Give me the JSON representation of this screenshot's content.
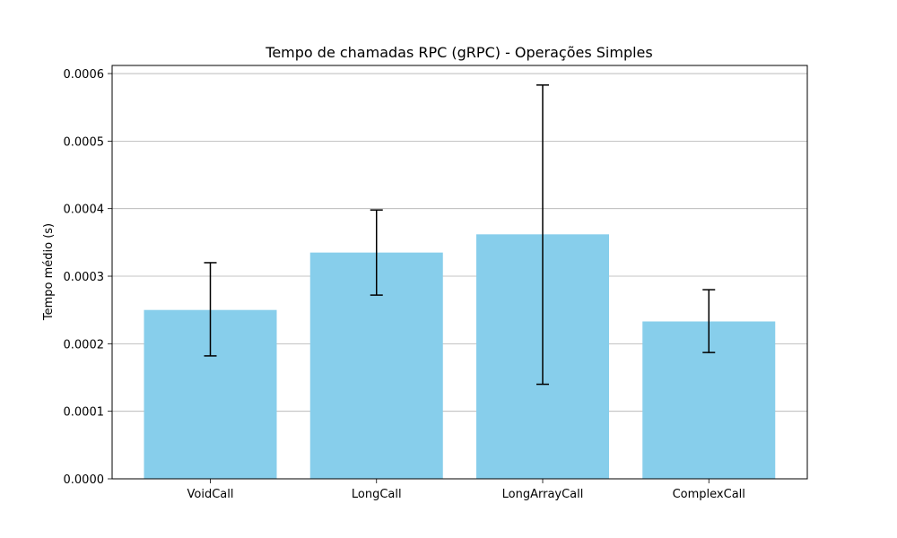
{
  "chart_data": {
    "type": "bar",
    "title": "Tempo de chamadas RPC (gRPC) - Operações Simples",
    "xlabel": "",
    "ylabel": "Tempo médio (s)",
    "categories": [
      "VoidCall",
      "LongCall",
      "LongArrayCall",
      "ComplexCall"
    ],
    "values": [
      0.00025,
      0.000335,
      0.000362,
      0.000233
    ],
    "error_low": [
      0.000182,
      0.000272,
      0.00014,
      0.000187
    ],
    "error_high": [
      0.00032,
      0.000398,
      0.000583,
      0.00028
    ],
    "ylim": [
      0,
      0.000612
    ],
    "yticks": [
      "0.0000",
      "0.0001",
      "0.0002",
      "0.0003",
      "0.0004",
      "0.0005",
      "0.0006"
    ],
    "ytick_values": [
      0,
      0.0001,
      0.0002,
      0.0003,
      0.0004,
      0.0005,
      0.0006
    ],
    "grid": "y-axis",
    "colors": {
      "bar": "#87CEEB",
      "error_bar": "#000000",
      "grid": "#b0b0b0"
    }
  }
}
